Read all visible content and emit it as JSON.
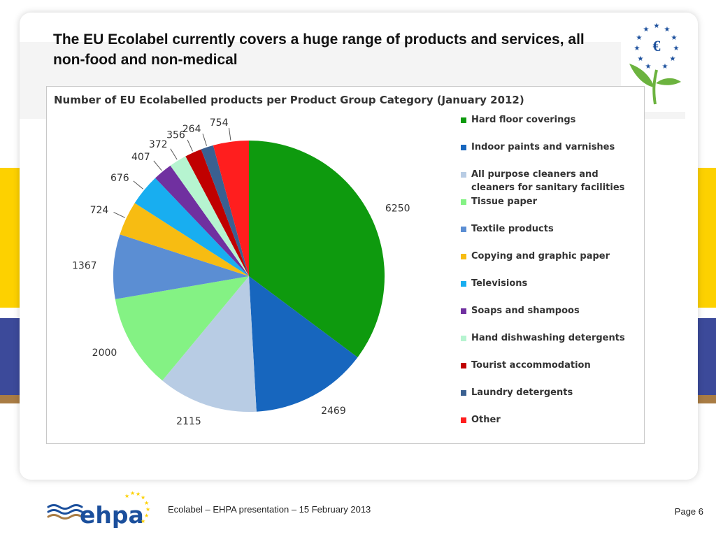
{
  "slide": {
    "title": "The EU Ecolabel currently covers a huge range of products and services, all non-food and non-medical"
  },
  "footer": {
    "text": "Ecolabel – EHPA presentation – 15 February 2013",
    "page": "Page 6",
    "logo_text": "ehpa"
  },
  "colors": {
    "yellow_stripe": "#fdd100",
    "blue_stripe": "#3c4a9a",
    "brown_stripe": "#a97c44",
    "ecolabel_blue": "#1b4f9c",
    "ecolabel_green": "#6cb33f"
  },
  "chart_data": {
    "type": "pie",
    "title": "Number of EU Ecolabelled products per Product Group Category (January 2012)",
    "legend_position": "right",
    "categories": [
      "Hard floor coverings",
      "Indoor paints and varnishes",
      "All purpose cleaners and cleaners for sanitary facilities",
      "Tissue paper",
      "Textile products",
      "Copying and graphic paper",
      "Televisions",
      "Soaps and shampoos",
      "Hand dishwashing detergents",
      "Tourist accommodation",
      "Laundry detergents",
      "Other"
    ],
    "values": [
      6250,
      2469,
      2115,
      2000,
      1367,
      724,
      676,
      407,
      372,
      356,
      264,
      754
    ],
    "colors": [
      "#0e9a0e",
      "#1766be",
      "#b8cce4",
      "#84f284",
      "#5b8ed3",
      "#f7bc12",
      "#18aef0",
      "#7030a0",
      "#b6f4d0",
      "#c00000",
      "#3a6091",
      "#ff1e1e"
    ]
  }
}
